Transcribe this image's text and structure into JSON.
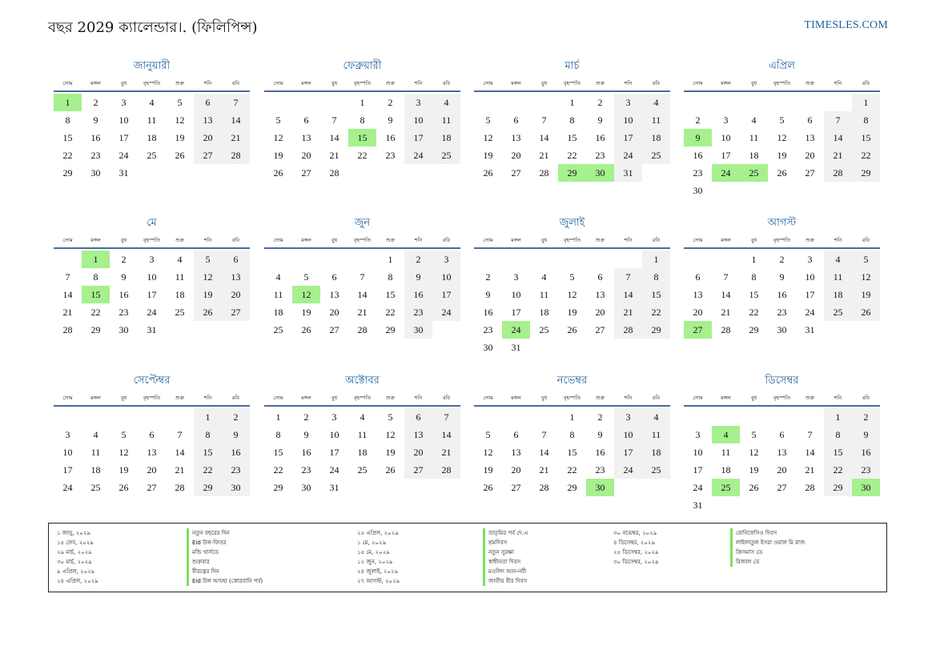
{
  "header": {
    "title": "বছর 2029 ক্যালেন্ডার।. (ফিলিপিন্স)",
    "site": "TIMESLES.COM"
  },
  "weekdays": [
    "সোম",
    "মঙ্গল",
    "বুধ",
    "বৃহস্পতি",
    "শুক্র",
    "শনি",
    "রবি"
  ],
  "months": [
    {
      "name": "জানুয়ারী",
      "offset": 0,
      "days": 31,
      "holidays": [
        1
      ]
    },
    {
      "name": "ফেব্রুয়ারী",
      "offset": 3,
      "days": 28,
      "holidays": [
        15
      ]
    },
    {
      "name": "মার্চ",
      "offset": 3,
      "days": 31,
      "holidays": [
        29,
        30
      ]
    },
    {
      "name": "এপ্রিল",
      "offset": 6,
      "days": 30,
      "holidays": [
        9,
        24,
        25
      ]
    },
    {
      "name": "মে",
      "offset": 1,
      "days": 31,
      "holidays": [
        1,
        15
      ]
    },
    {
      "name": "জুন",
      "offset": 4,
      "days": 30,
      "holidays": [
        12
      ]
    },
    {
      "name": "জুলাই",
      "offset": 6,
      "days": 31,
      "holidays": [
        24
      ]
    },
    {
      "name": "আগস্ট",
      "offset": 2,
      "days": 31,
      "holidays": [
        27
      ]
    },
    {
      "name": "সেপ্টেম্বর",
      "offset": 5,
      "days": 30,
      "holidays": []
    },
    {
      "name": "অক্টোবর",
      "offset": 0,
      "days": 31,
      "holidays": []
    },
    {
      "name": "নভেম্বর",
      "offset": 3,
      "days": 30,
      "holidays": [
        30
      ]
    },
    {
      "name": "ডিসেম্বর",
      "offset": 5,
      "days": 31,
      "holidays": [
        4,
        25,
        30
      ]
    }
  ],
  "holidays": {
    "col1_dates": [
      "১ জানু, ২০২৯",
      "১৫ ফেব, ২০২৯",
      "২৯ মার্চ, ২০২৯",
      "৩০ মার্চ, ২০২৯",
      "৯ এপ্রিল, ২০২৯",
      "২৪ এপ্রিল, ২০২৯"
    ],
    "col1_names": [
      "নতুন বছরের দিন",
      "Eid উল-ফিতর",
      "মন্ডি থার্সডে",
      "শুক্রবার",
      "বীরত্বের দিন",
      "Eid উল আযহা (কোরবানি পর্ব)"
    ],
    "col2_dates": [
      "২৫ এপ্রিল, ২০২৯",
      "১ মে, ২০২৯",
      "১৫ মে, ২০২৯",
      "১২ জুন, ২০২৯",
      "২৪ জুলাই, ২০২৯",
      "২৭ আগস্ট, ২০২৯"
    ],
    "col2_names": [
      "ভ্রাতৃমির পর্ব দে.এ",
      "শ্রমদিবস",
      "নতুন সুরক্ষা",
      "স্বাধীনতা দিবস",
      "মওলিদ আন-নবী",
      "জাতীয় বীর দিবস"
    ],
    "col3_dates": [
      "৩০ নভেম্বর, ২০২৯",
      "৪ ডিসেম্বর, ২০২৯",
      "২৫ ডিসেম্বর, ২০২৯",
      "৩০ ডিসেম্বর, ২০২৯"
    ],
    "col3_names": [
      "বোনিফেসিও দিবস",
      "লাইলাতুল ইসরা ওয়াল মি রাজ",
      "ক্রিসমাস ডে",
      "রিজাল ডে"
    ]
  }
}
